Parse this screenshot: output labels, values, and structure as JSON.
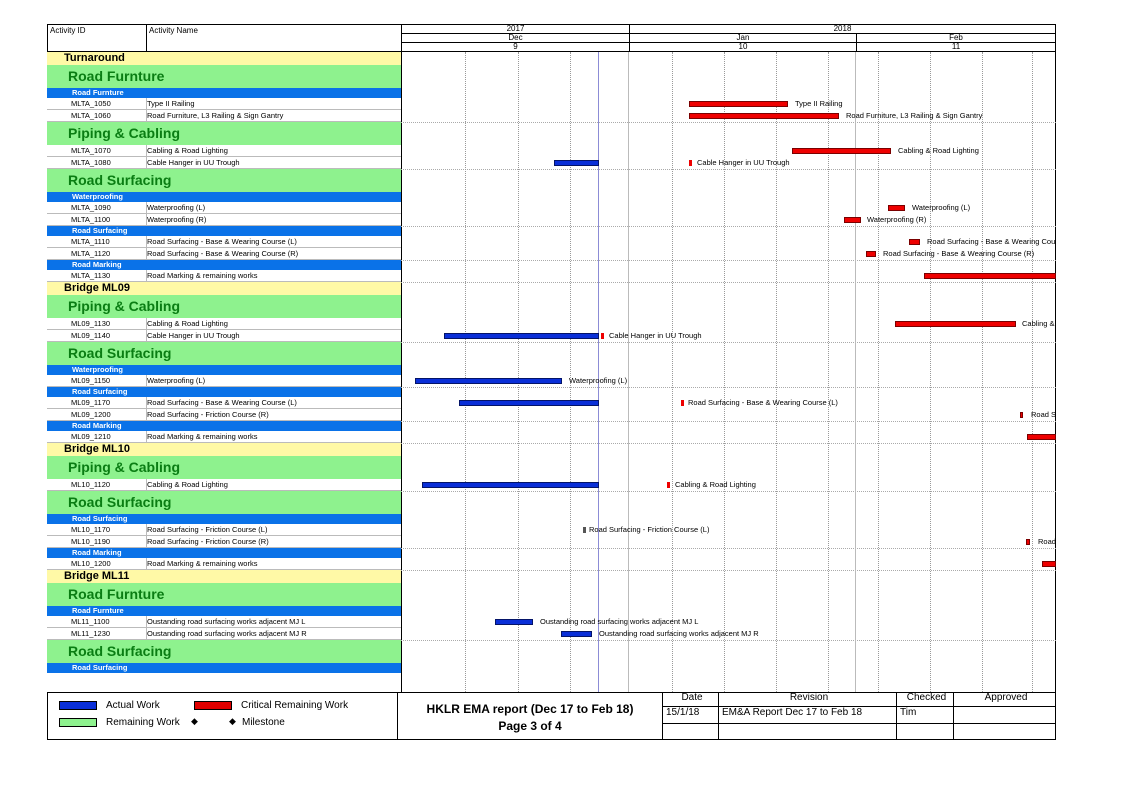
{
  "columns": {
    "activity_id": "Activity ID",
    "activity_name": "Activity Name"
  },
  "timeline": {
    "years": [
      "2017",
      "2018"
    ],
    "months": [
      "Dec",
      "Jan",
      "Feb"
    ],
    "periods": [
      "9",
      "10",
      "11"
    ]
  },
  "rows": [
    {
      "kind": "title",
      "text": "Turnaround"
    },
    {
      "kind": "group",
      "text": "Road Furnture"
    },
    {
      "kind": "sub",
      "text": "Road Furnture"
    },
    {
      "kind": "act",
      "id": "MLTA_1050",
      "name": "Type II Railing"
    },
    {
      "kind": "act",
      "id": "MLTA_1060",
      "name": "Road Furniture, L3 Railing & Sign Gantry"
    },
    {
      "kind": "group",
      "text": "Piping & Cabling"
    },
    {
      "kind": "act",
      "id": "MLTA_1070",
      "name": "Cabling & Road Lighting"
    },
    {
      "kind": "act",
      "id": "MLTA_1080",
      "name": "Cable Hanger in UU Trough"
    },
    {
      "kind": "group",
      "text": "Road Surfacing"
    },
    {
      "kind": "sub",
      "text": "Waterproofing"
    },
    {
      "kind": "act",
      "id": "MLTA_1090",
      "name": "Waterproofing (L)"
    },
    {
      "kind": "act",
      "id": "MLTA_1100",
      "name": "Waterproofing (R)"
    },
    {
      "kind": "sub",
      "text": "Road Surfacing"
    },
    {
      "kind": "act",
      "id": "MLTA_1110",
      "name": "Road Surfacing - Base & Wearing Course (L)"
    },
    {
      "kind": "act",
      "id": "MLTA_1120",
      "name": "Road Surfacing - Base & Wearing Course (R)"
    },
    {
      "kind": "sub",
      "text": "Road Marking"
    },
    {
      "kind": "act",
      "id": "MLTA_1130",
      "name": "Road Marking & remaining works"
    },
    {
      "kind": "title",
      "text": "Bridge ML09"
    },
    {
      "kind": "group",
      "text": "Piping & Cabling"
    },
    {
      "kind": "act",
      "id": "ML09_1130",
      "name": "Cabling & Road Lighting"
    },
    {
      "kind": "act",
      "id": "ML09_1140",
      "name": "Cable Hanger in UU Trough"
    },
    {
      "kind": "group",
      "text": "Road Surfacing"
    },
    {
      "kind": "sub",
      "text": "Waterproofing"
    },
    {
      "kind": "act",
      "id": "ML09_1150",
      "name": "Waterproofing (L)"
    },
    {
      "kind": "sub",
      "text": "Road Surfacing"
    },
    {
      "kind": "act",
      "id": "ML09_1170",
      "name": "Road Surfacing - Base & Wearing Course (L)"
    },
    {
      "kind": "act",
      "id": "ML09_1200",
      "name": "Road Surfacing - Friction Course (R)"
    },
    {
      "kind": "sub",
      "text": "Road Marking"
    },
    {
      "kind": "act",
      "id": "ML09_1210",
      "name": "Road Marking & remaining works"
    },
    {
      "kind": "title",
      "text": "Bridge ML10"
    },
    {
      "kind": "group",
      "text": "Piping & Cabling"
    },
    {
      "kind": "act",
      "id": "ML10_1120",
      "name": "Cabling & Road Lighting"
    },
    {
      "kind": "group",
      "text": "Road Surfacing"
    },
    {
      "kind": "sub",
      "text": "Road Surfacing"
    },
    {
      "kind": "act",
      "id": "ML10_1170",
      "name": "Road Surfacing - Friction Course (L)"
    },
    {
      "kind": "act",
      "id": "ML10_1190",
      "name": "Road Surfacing - Friction Course (R)"
    },
    {
      "kind": "sub",
      "text": "Road Marking"
    },
    {
      "kind": "act",
      "id": "ML10_1200",
      "name": "Road Marking & remaining works"
    },
    {
      "kind": "title",
      "text": "Bridge ML11"
    },
    {
      "kind": "group",
      "text": "Road Furnture"
    },
    {
      "kind": "sub",
      "text": "Road Furnture"
    },
    {
      "kind": "act",
      "id": "ML11_1100",
      "name": "Oustanding road surfacing works adjacent MJ L"
    },
    {
      "kind": "act",
      "id": "ML11_1230",
      "name": "Oustanding road surfacing works adjacent MJ R"
    },
    {
      "kind": "group",
      "text": "Road Surfacing"
    },
    {
      "kind": "sub",
      "text": "Road Surfacing"
    }
  ],
  "bar_labels": {
    "MLTA_1050": "Type II Railing",
    "MLTA_1060": "Road Furniture, L3 Railing & Sign Gantry",
    "MLTA_1070": "Cabling & Road Lighting",
    "MLTA_1080": "Cable Hanger in UU Trough",
    "MLTA_1090": "Waterproofing (L)",
    "MLTA_1100": "Waterproofing (R)",
    "MLTA_1110": "Road Surfacing - Base & Wearing Cou",
    "MLTA_1120": "Road Surfacing - Base & Wearing Course (R)",
    "ML09_1130": "Cabling &",
    "ML09_1140": "Cable Hanger in UU Trough",
    "ML09_1150": "Waterproofing (L)",
    "ML09_1170": "Road Surfacing - Base & Wearing Course (L)",
    "ML09_1200": "Road S",
    "ML10_1120": "Cabling & Road Lighting",
    "ML10_1170": "Road Surfacing - Friction Course (L)",
    "ML10_1190": "Road",
    "ML11_1100": "Oustanding road surfacing works adjacent MJ L",
    "ML11_1230": "Oustanding road surfacing works adjacent MJ R"
  },
  "legend": {
    "actual_work": "Actual Work",
    "critical_remaining": "Critical Remaining Work",
    "remaining_work": "Remaining Work",
    "milestone": "Milestone",
    "colors": {
      "actual": "#0a2fd8",
      "critical": "#e00000",
      "remaining": "#8ef28e"
    }
  },
  "report": {
    "title": "HKLR EMA report (Dec 17 to Feb 18)",
    "page": "Page 3 of 4"
  },
  "revision_table": {
    "headers": [
      "Date",
      "Revision",
      "Checked",
      "Approved"
    ],
    "row": [
      "15/1/18",
      "EM&A Report Dec 17 to Feb 18",
      "Tim",
      ""
    ]
  }
}
